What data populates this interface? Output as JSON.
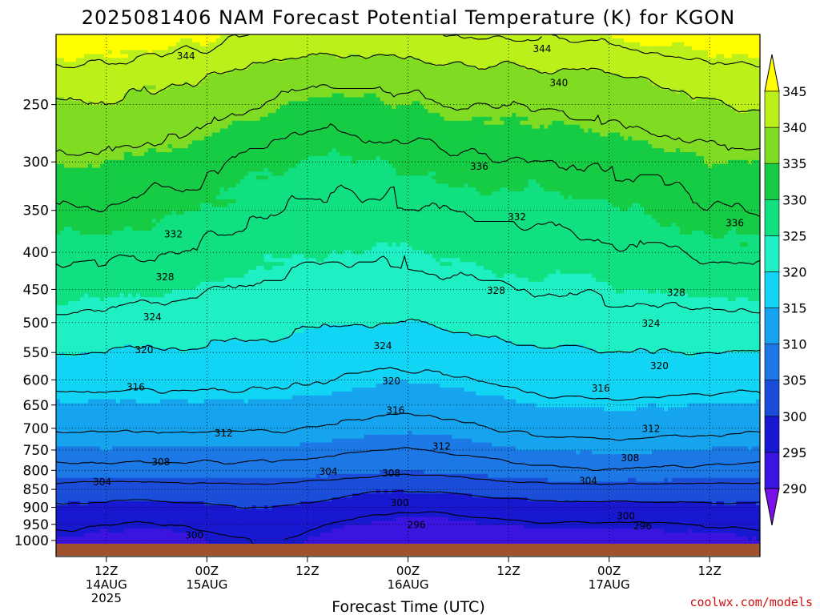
{
  "title": "2025081406 NAM Forecast Potential Temperature (K) for KGON",
  "credit": "coolwx.com/models",
  "chart_data": {
    "type": "heatmap",
    "title": "2025081406 NAM Forecast Potential Temperature (K) for KGON",
    "xlabel": "Forecast Time (UTC)",
    "ylabel": "",
    "x_ticks": [
      {
        "hour": 6,
        "label": "12Z",
        "sub1": "14AUG",
        "sub2": "2025"
      },
      {
        "hour": 18,
        "label": "00Z",
        "sub1": "15AUG",
        "sub2": ""
      },
      {
        "hour": 30,
        "label": "12Z",
        "sub1": "",
        "sub2": ""
      },
      {
        "hour": 42,
        "label": "00Z",
        "sub1": "16AUG",
        "sub2": ""
      },
      {
        "hour": 54,
        "label": "12Z",
        "sub1": "",
        "sub2": ""
      },
      {
        "hour": 66,
        "label": "00Z",
        "sub1": "17AUG",
        "sub2": ""
      },
      {
        "hour": 78,
        "label": "12Z",
        "sub1": "",
        "sub2": ""
      }
    ],
    "x_range_hours": [
      0,
      84
    ],
    "y_axis": {
      "units": "hPa",
      "scale": "log",
      "inverted": true,
      "range": [
        1013,
        200
      ],
      "ticks": [
        250,
        300,
        350,
        400,
        450,
        500,
        550,
        600,
        650,
        700,
        750,
        800,
        850,
        900,
        950,
        1000
      ]
    },
    "grid": true,
    "colorbar": {
      "levels": [
        290,
        295,
        300,
        305,
        310,
        315,
        320,
        325,
        330,
        335,
        340,
        345
      ],
      "colors": [
        "#7a10e8",
        "#3c14e0",
        "#1818d0",
        "#1a4ed8",
        "#1c78e4",
        "#16a4ee",
        "#12d4f4",
        "#1ef0c4",
        "#10e080",
        "#16cc44",
        "#80dc22",
        "#bcf01a",
        "#ffff00"
      ]
    },
    "contour_interval": 4,
    "contour_levels": [
      296,
      300,
      304,
      308,
      312,
      316,
      320,
      324,
      328,
      332,
      336,
      340,
      344
    ],
    "contour_labels": [
      {
        "text": "344",
        "hour": 15.5,
        "p": 214
      },
      {
        "text": "344",
        "hour": 58,
        "p": 209
      },
      {
        "text": "340",
        "hour": 60,
        "p": 233
      },
      {
        "text": "336",
        "hour": 50.5,
        "p": 304
      },
      {
        "text": "336",
        "hour": 81,
        "p": 364
      },
      {
        "text": "332",
        "hour": 14,
        "p": 377
      },
      {
        "text": "332",
        "hour": 55,
        "p": 357
      },
      {
        "text": "328",
        "hour": 13,
        "p": 432
      },
      {
        "text": "328",
        "hour": 52.5,
        "p": 451
      },
      {
        "text": "328",
        "hour": 74,
        "p": 454
      },
      {
        "text": "324",
        "hour": 11.5,
        "p": 491
      },
      {
        "text": "324",
        "hour": 39,
        "p": 538
      },
      {
        "text": "324",
        "hour": 71,
        "p": 501
      },
      {
        "text": "320",
        "hour": 10.5,
        "p": 545
      },
      {
        "text": "320",
        "hour": 40,
        "p": 602
      },
      {
        "text": "320",
        "hour": 72,
        "p": 573
      },
      {
        "text": "316",
        "hour": 9.5,
        "p": 613
      },
      {
        "text": "316",
        "hour": 40.5,
        "p": 660
      },
      {
        "text": "316",
        "hour": 65,
        "p": 616
      },
      {
        "text": "312",
        "hour": 20,
        "p": 710
      },
      {
        "text": "312",
        "hour": 46,
        "p": 741
      },
      {
        "text": "312",
        "hour": 71,
        "p": 700
      },
      {
        "text": "308",
        "hour": 12.5,
        "p": 778
      },
      {
        "text": "308",
        "hour": 40,
        "p": 807
      },
      {
        "text": "308",
        "hour": 68.5,
        "p": 768
      },
      {
        "text": "304",
        "hour": 5.5,
        "p": 829
      },
      {
        "text": "304",
        "hour": 32.5,
        "p": 802
      },
      {
        "text": "304",
        "hour": 63.5,
        "p": 826
      },
      {
        "text": "300",
        "hour": 41,
        "p": 886
      },
      {
        "text": "300",
        "hour": 68,
        "p": 924
      },
      {
        "text": "300",
        "hour": 16.5,
        "p": 983
      },
      {
        "text": "296",
        "hour": 43,
        "p": 950
      },
      {
        "text": "296",
        "hour": 70,
        "p": 954
      }
    ]
  }
}
